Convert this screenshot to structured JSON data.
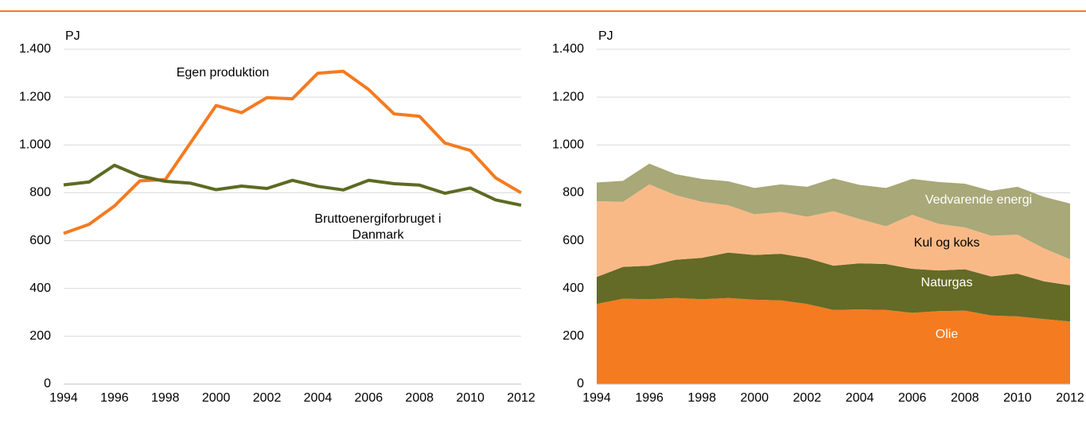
{
  "chart_data": [
    {
      "type": "line",
      "ylabel": "PJ",
      "x": [
        1994,
        1995,
        1996,
        1997,
        1998,
        1999,
        2000,
        2001,
        2002,
        2003,
        2004,
        2005,
        2006,
        2007,
        2008,
        2009,
        2010,
        2011,
        2012
      ],
      "xlim": [
        1994,
        2012
      ],
      "xticks": [
        1994,
        1996,
        1998,
        2000,
        2002,
        2004,
        2006,
        2008,
        2010,
        2012
      ],
      "ylim": [
        0,
        1400
      ],
      "yticks": [
        0,
        200,
        400,
        600,
        800,
        {
          "value": 1000,
          "label": "1.000"
        },
        {
          "value": 1200,
          "label": "1.200"
        },
        {
          "value": 1400,
          "label": "1.400"
        }
      ],
      "grid": true,
      "series": [
        {
          "name": "Egen produktion",
          "color": "#f47b20",
          "values": [
            630,
            668,
            745,
            850,
            855,
            1010,
            1165,
            1135,
            1198,
            1193,
            1300,
            1308,
            1232,
            1130,
            1120,
            1008,
            977,
            862,
            800
          ]
        },
        {
          "name": "Bruttoenergiforbruget i Danmark",
          "color": "#5c6b22",
          "values": [
            833,
            845,
            915,
            870,
            848,
            840,
            813,
            828,
            818,
            852,
            827,
            812,
            852,
            838,
            832,
            798,
            820,
            770,
            748
          ]
        }
      ]
    },
    {
      "type": "stacked_area",
      "ylabel": "PJ",
      "x": [
        1994,
        1995,
        1996,
        1997,
        1998,
        1999,
        2000,
        2001,
        2002,
        2003,
        2004,
        2005,
        2006,
        2007,
        2008,
        2009,
        2010,
        2011,
        2012
      ],
      "xlim": [
        1994,
        2012
      ],
      "xticks": [
        1994,
        1996,
        1998,
        2000,
        2002,
        2004,
        2006,
        2008,
        2010,
        2012
      ],
      "ylim": [
        0,
        1400
      ],
      "yticks": [
        0,
        200,
        400,
        600,
        800,
        {
          "value": 1000,
          "label": "1.000"
        },
        {
          "value": 1200,
          "label": "1.200"
        },
        {
          "value": 1400,
          "label": "1.400"
        }
      ],
      "grid": true,
      "series": [
        {
          "name": "Olie",
          "color": "#f47b20",
          "values": [
            335,
            357,
            355,
            360,
            355,
            360,
            353,
            350,
            335,
            310,
            312,
            310,
            298,
            305,
            307,
            287,
            283,
            272,
            262
          ]
        },
        {
          "name": "Naturgas",
          "color": "#636b26",
          "values": [
            113,
            133,
            140,
            160,
            173,
            190,
            187,
            195,
            192,
            185,
            193,
            192,
            184,
            170,
            173,
            163,
            179,
            158,
            151
          ]
        },
        {
          "name": "Kul og koks",
          "color": "#f9b987",
          "values": [
            317,
            272,
            340,
            270,
            234,
            198,
            170,
            175,
            173,
            228,
            185,
            158,
            226,
            195,
            175,
            170,
            163,
            138,
            109
          ]
        },
        {
          "name": "Vedvarende energi",
          "color": "#a8a878",
          "values": [
            78,
            88,
            87,
            88,
            96,
            100,
            110,
            115,
            125,
            137,
            143,
            160,
            150,
            175,
            183,
            188,
            200,
            215,
            233
          ]
        }
      ]
    }
  ]
}
